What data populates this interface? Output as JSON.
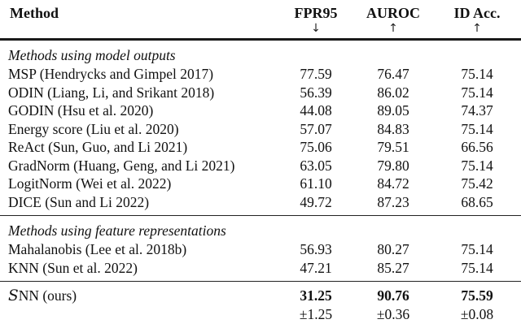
{
  "table": {
    "columns": [
      {
        "label": "Method",
        "dir": ""
      },
      {
        "label": "FPR95",
        "dir": "↓"
      },
      {
        "label": "AUROC",
        "dir": "↑"
      },
      {
        "label": "ID Acc.",
        "dir": "↑"
      }
    ],
    "sections": [
      {
        "header": "Methods using model outputs",
        "rows": [
          {
            "method": "MSP (Hendrycks and Gimpel 2017)",
            "fpr95": "77.59",
            "auroc": "76.47",
            "id": "75.14"
          },
          {
            "method": "ODIN (Liang, Li, and Srikant 2018)",
            "fpr95": "56.39",
            "auroc": "86.02",
            "id": "75.14"
          },
          {
            "method": "GODIN (Hsu et al. 2020)",
            "fpr95": "44.08",
            "auroc": "89.05",
            "id": "74.37"
          },
          {
            "method": "Energy score (Liu et al. 2020)",
            "fpr95": "57.07",
            "auroc": "84.83",
            "id": "75.14"
          },
          {
            "method": "ReAct (Sun, Guo, and Li 2021)",
            "fpr95": "75.06",
            "auroc": "79.51",
            "id": "66.56"
          },
          {
            "method": "GradNorm (Huang, Geng, and Li 2021)",
            "fpr95": "63.05",
            "auroc": "79.80",
            "id": "75.14"
          },
          {
            "method": "LogitNorm (Wei et al. 2022)",
            "fpr95": "61.10",
            "auroc": "84.72",
            "id": "75.42"
          },
          {
            "method": "DICE (Sun and Li 2022)",
            "fpr95": "49.72",
            "auroc": "87.23",
            "id": "68.65"
          }
        ]
      },
      {
        "header": "Methods using feature representations",
        "rows": [
          {
            "method": "Mahalanobis (Lee et al. 2018b)",
            "fpr95": "56.93",
            "auroc": "80.27",
            "id": "75.14"
          },
          {
            "method": "KNN (Sun et al. 2022)",
            "fpr95": "47.21",
            "auroc": "85.27",
            "id": "75.14"
          }
        ]
      }
    ],
    "ours": {
      "cal": "S",
      "rest": "NN (ours)",
      "fpr95": "31.25",
      "auroc": "90.76",
      "id": "75.59",
      "fpr95_std": "±1.25",
      "auroc_std": "±0.36",
      "id_std": "±0.08"
    }
  }
}
